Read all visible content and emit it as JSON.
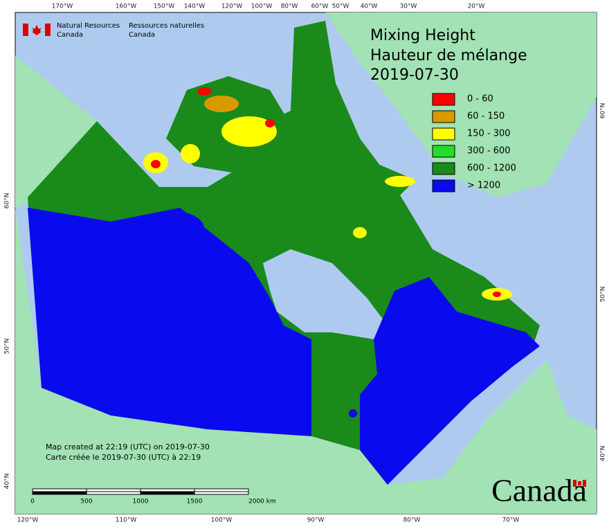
{
  "header": {
    "agency_en": "Natural Resources",
    "agency_en_2": "Canada",
    "agency_fr": "Ressources naturelles",
    "agency_fr_2": "Canada"
  },
  "title": {
    "line1": "Mixing Height",
    "line2": "Hauteur de mélange",
    "date": "2019-07-30"
  },
  "legend": [
    {
      "label": "0 - 60",
      "color": "#ff0000"
    },
    {
      "label": "60 - 150",
      "color": "#d99a00"
    },
    {
      "label": "150 - 300",
      "color": "#ffff00"
    },
    {
      "label": "300 - 600",
      "color": "#22dd22"
    },
    {
      "label": "600 - 1200",
      "color": "#1a8a1a"
    },
    {
      "label": "> 1200",
      "color": "#0a0aee"
    }
  ],
  "notes": {
    "created_en": "Map created at 22:19 (UTC) on 2019-07-30",
    "created_fr": "Carte créée le 2019-07-30 (UTC) à 22:19"
  },
  "scale_bar": {
    "labels": [
      "0",
      "500",
      "1000",
      "1500",
      "2000 km"
    ]
  },
  "graticule": {
    "top": [
      "170°W",
      "160°W",
      "150°W",
      "140°W",
      "120°W",
      "100°W",
      "80°W",
      "60°W",
      "50°W",
      "40°W",
      "30°W",
      "20°W"
    ],
    "bottom": [
      "120°W",
      "110°W",
      "100°W",
      "90°W",
      "80°W",
      "70°W"
    ],
    "left": [
      "60°N",
      "50°N",
      "40°N"
    ],
    "right": [
      "60°N",
      "50°N",
      "40°N"
    ]
  },
  "wordmark": "Canada"
}
